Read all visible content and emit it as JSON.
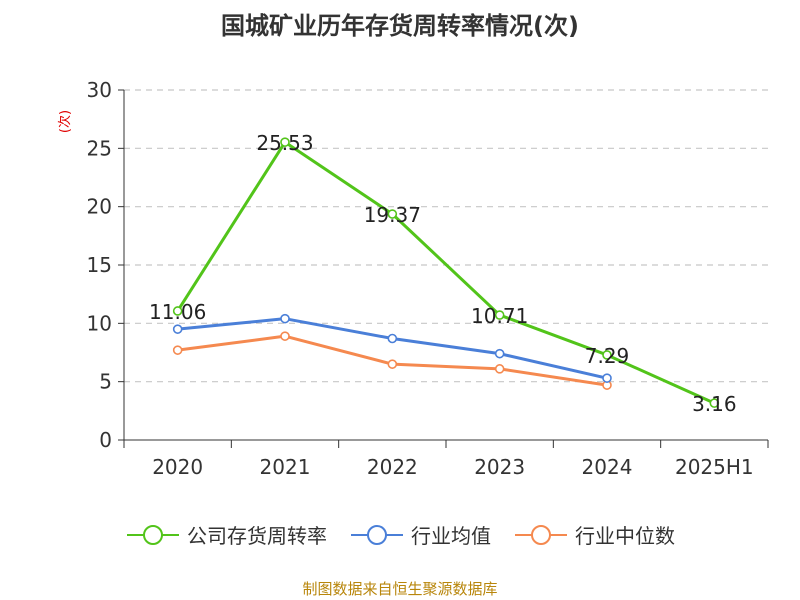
{
  "title": "国城矿业历年存货周转率情况(次)",
  "ylabel": "(次)",
  "source": "制图数据来自恒生聚源数据库",
  "chart_data": {
    "type": "line",
    "categories": [
      "2020",
      "2021",
      "2022",
      "2023",
      "2024",
      "2025H1"
    ],
    "ylim": [
      0,
      30
    ],
    "yticks": [
      0,
      5,
      10,
      15,
      20,
      25,
      30
    ],
    "grid": true,
    "legend_position": "bottom",
    "series": [
      {
        "name": "公司存货周转率",
        "color": "#52c41a",
        "values": [
          11.06,
          25.53,
          19.37,
          10.71,
          7.29,
          3.16
        ],
        "labels": [
          "11.06",
          "25.53",
          "19.37",
          "10.71",
          "7.29",
          "3.16"
        ]
      },
      {
        "name": "行业均值",
        "color": "#4a7fd8",
        "values": [
          9.5,
          10.4,
          8.7,
          7.4,
          5.3,
          null
        ]
      },
      {
        "name": "行业中位数",
        "color": "#f5894f",
        "values": [
          7.7,
          8.9,
          6.5,
          6.1,
          4.7,
          null
        ]
      }
    ]
  }
}
